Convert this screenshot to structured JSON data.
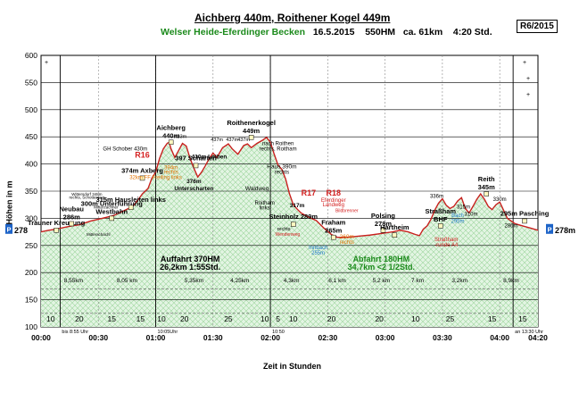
{
  "header": {
    "title": "Aichberg 440m, Roithener Kogel 449m",
    "region": "Welser Heide-Eferdinger Becken",
    "date": "16.5.2015",
    "ascent": "550HM",
    "distance": "ca. 61km",
    "duration": "4:20 Std.",
    "code": "R6/2015"
  },
  "chart_data": {
    "type": "area",
    "title": "Aichberg 440m, Roithener Kogel 449m",
    "xlabel": "Zeit in Stunden",
    "ylabel": "Höhen in m",
    "xlim": [
      0,
      260
    ],
    "ylim": [
      100,
      600
    ],
    "grid": true,
    "x_ticks": [
      {
        "t": 0,
        "label": "00:00"
      },
      {
        "t": 30,
        "label": "00:30"
      },
      {
        "t": 60,
        "label": "01:00"
      },
      {
        "t": 90,
        "label": "01:30"
      },
      {
        "t": 120,
        "label": "02:00"
      },
      {
        "t": 150,
        "label": "02:30"
      },
      {
        "t": 180,
        "label": "03:00"
      },
      {
        "t": 210,
        "label": "03:30"
      },
      {
        "t": 240,
        "label": "04:00"
      },
      {
        "t": 260,
        "label": "04:20"
      }
    ],
    "y_ticks": [
      100,
      150,
      200,
      250,
      300,
      350,
      400,
      450,
      500,
      550,
      600
    ],
    "profile": [
      [
        0,
        275
      ],
      [
        4,
        278
      ],
      [
        8,
        280
      ],
      [
        12,
        283
      ],
      [
        16,
        286
      ],
      [
        20,
        288
      ],
      [
        26,
        295
      ],
      [
        32,
        300
      ],
      [
        38,
        305
      ],
      [
        44,
        315
      ],
      [
        48,
        322
      ],
      [
        51,
        335
      ],
      [
        53,
        345
      ],
      [
        56,
        355
      ],
      [
        58,
        374
      ],
      [
        60,
        385
      ],
      [
        62,
        410
      ],
      [
        64,
        428
      ],
      [
        66,
        438
      ],
      [
        67,
        440
      ],
      [
        68,
        428
      ],
      [
        70,
        412
      ],
      [
        72,
        425
      ],
      [
        74,
        438
      ],
      [
        76,
        433
      ],
      [
        78,
        410
      ],
      [
        80,
        392
      ],
      [
        82,
        376
      ],
      [
        84,
        385
      ],
      [
        86,
        397
      ],
      [
        88,
        410
      ],
      [
        90,
        420
      ],
      [
        92,
        412
      ],
      [
        95,
        430
      ],
      [
        98,
        437
      ],
      [
        100,
        428
      ],
      [
        103,
        418
      ],
      [
        106,
        434
      ],
      [
        108,
        437
      ],
      [
        110,
        430
      ],
      [
        113,
        438
      ],
      [
        116,
        444
      ],
      [
        118,
        449
      ],
      [
        120,
        440
      ],
      [
        122,
        418
      ],
      [
        124,
        398
      ],
      [
        126,
        390
      ],
      [
        128,
        372
      ],
      [
        130,
        345
      ],
      [
        132,
        325
      ],
      [
        134,
        317
      ],
      [
        136,
        310
      ],
      [
        140,
        302
      ],
      [
        144,
        296
      ],
      [
        146,
        289
      ],
      [
        148,
        282
      ],
      [
        150,
        276
      ],
      [
        152,
        270
      ],
      [
        155,
        265
      ],
      [
        160,
        265
      ],
      [
        166,
        267
      ],
      [
        172,
        269
      ],
      [
        178,
        272
      ],
      [
        184,
        275
      ],
      [
        188,
        278
      ],
      [
        192,
        275
      ],
      [
        196,
        270
      ],
      [
        198,
        268
      ],
      [
        200,
        280
      ],
      [
        202,
        286
      ],
      [
        204,
        298
      ],
      [
        206,
        315
      ],
      [
        208,
        328
      ],
      [
        210,
        336
      ],
      [
        212,
        324
      ],
      [
        214,
        318
      ],
      [
        216,
        322
      ],
      [
        218,
        332
      ],
      [
        220,
        338
      ],
      [
        222,
        318
      ],
      [
        224,
        310
      ],
      [
        226,
        322
      ],
      [
        228,
        335
      ],
      [
        230,
        345
      ],
      [
        232,
        335
      ],
      [
        234,
        322
      ],
      [
        236,
        316
      ],
      [
        238,
        325
      ],
      [
        240,
        330
      ],
      [
        242,
        315
      ],
      [
        244,
        300
      ],
      [
        246,
        295
      ],
      [
        248,
        290
      ],
      [
        252,
        286
      ],
      [
        256,
        282
      ],
      [
        260,
        278
      ]
    ],
    "vlines": [
      {
        "t": 10,
        "label": "bis 8:55 Uhr"
      },
      {
        "t": 60,
        "label": "10:05Uhr"
      },
      {
        "t": 120,
        "label": "10:50"
      },
      {
        "t": 247,
        "label": "an 13:30 Uhr"
      }
    ],
    "segments": [
      {
        "t": 5,
        "label": "10"
      },
      {
        "t": 20,
        "label": "20"
      },
      {
        "t": 37,
        "label": "15"
      },
      {
        "t": 52,
        "label": "15"
      },
      {
        "t": 63,
        "label": "10"
      },
      {
        "t": 75,
        "label": "20"
      },
      {
        "t": 98,
        "label": "25"
      },
      {
        "t": 117,
        "label": "10"
      },
      {
        "t": 124,
        "label": "5"
      },
      {
        "t": 132,
        "label": "10"
      },
      {
        "t": 152,
        "label": "20"
      },
      {
        "t": 177,
        "label": "20"
      },
      {
        "t": 196,
        "label": "10"
      },
      {
        "t": 214,
        "label": "25"
      },
      {
        "t": 236,
        "label": "15"
      },
      {
        "t": 252,
        "label": "15"
      }
    ],
    "distances": [
      {
        "t": 17,
        "label": "8,55km"
      },
      {
        "t": 45,
        "label": "8,05 km"
      },
      {
        "t": 80,
        "label": "5,35km"
      },
      {
        "t": 104,
        "label": "4,25km"
      },
      {
        "t": 131,
        "label": "4,3km"
      },
      {
        "t": 155,
        "label": "6,1 km"
      },
      {
        "t": 178,
        "label": "5,2 km"
      },
      {
        "t": 197,
        "label": "7 km"
      },
      {
        "t": 219,
        "label": "3,2km"
      },
      {
        "t": 246,
        "label": "8,9km"
      }
    ],
    "totals": [
      {
        "t": 78,
        "elev": 220,
        "text": "Auffahrt 370HM"
      },
      {
        "t": 78,
        "elev": 205,
        "text": "26,2km   1:55Std."
      },
      {
        "t": 178,
        "elev": 220,
        "text": "Abfahrt 180HM"
      },
      {
        "t": 178,
        "elev": 205,
        "text": "34,7km   <2 1/2Std."
      }
    ],
    "peaks": [
      {
        "t": 8,
        "elev": 278,
        "title": "Trauner Kreuzung",
        "sub": ""
      },
      {
        "t": 16,
        "elev": 290,
        "title": "Neubau",
        "sub": "286m"
      },
      {
        "t": 37,
        "elev": 300,
        "title": "300m Unterführung",
        "sub": "Westbahn"
      },
      {
        "t": 47,
        "elev": 320,
        "title": "315m Hausleiten links",
        "sub": ""
      },
      {
        "t": 53,
        "elev": 374,
        "title": "374m Axberg",
        "sub": ""
      },
      {
        "t": 68,
        "elev": 440,
        "title": "Aichberg",
        "sub": "440m"
      },
      {
        "t": 81,
        "elev": 397,
        "title": "397 Scharten",
        "sub": ""
      },
      {
        "t": 110,
        "elev": 449,
        "title": "Roithenerkogel",
        "sub": "449m"
      },
      {
        "t": 132,
        "elev": 289,
        "title": "Steinholz 289m",
        "sub": ""
      },
      {
        "t": 153,
        "elev": 265,
        "title": "Fraham",
        "sub": "265m"
      },
      {
        "t": 179,
        "elev": 278,
        "title": "Polsing",
        "sub": "278m"
      },
      {
        "t": 185,
        "elev": 269,
        "title": "Hartheim",
        "sub": ""
      },
      {
        "t": 209,
        "elev": 286,
        "title": "Straßham",
        "sub": "BHF"
      },
      {
        "t": 233,
        "elev": 345,
        "title": "Reith",
        "sub": "345m"
      },
      {
        "t": 253,
        "elev": 295,
        "title": "295m Pasching",
        "sub": ""
      }
    ],
    "notes": [
      {
        "t": 53,
        "elev": 412,
        "text": "R16",
        "color": "#d42020",
        "size": 9,
        "weight": "bold"
      },
      {
        "t": 140,
        "elev": 342,
        "text": "R17",
        "color": "#d42020",
        "size": 9,
        "weight": "bold"
      },
      {
        "t": 153,
        "elev": 342,
        "text": "R18",
        "color": "#d42020",
        "size": 9,
        "weight": "bold"
      },
      {
        "t": 153,
        "elev": 330,
        "text": "Eferdinger",
        "color": "#d42020",
        "size": 6,
        "weight": "normal"
      },
      {
        "t": 153,
        "elev": 322,
        "text": "Landweg",
        "color": "#d42020",
        "size": 6,
        "weight": "normal"
      },
      {
        "t": 44,
        "elev": 425,
        "text": "GH Schober 430m",
        "color": "#000",
        "size": 6,
        "weight": "normal"
      },
      {
        "t": 60,
        "elev": 372,
        "text": "32km FF Freiling links",
        "color": "#e07000",
        "size": 6,
        "weight": "normal"
      },
      {
        "t": 68,
        "elev": 390,
        "text": "394m",
        "color": "#e07000",
        "size": 6,
        "weight": "normal"
      },
      {
        "t": 68,
        "elev": 382,
        "text": "rechts",
        "color": "#e07000",
        "size": 6,
        "weight": "normal"
      },
      {
        "t": 80,
        "elev": 365,
        "text": "376m",
        "color": "#000",
        "size": 6.5,
        "weight": "bold"
      },
      {
        "t": 80,
        "elev": 352,
        "text": "Unterscharten",
        "color": "#000",
        "size": 6.5,
        "weight": "bold"
      },
      {
        "t": 88,
        "elev": 410,
        "text": "410m Loiben",
        "color": "#000",
        "size": 6.5,
        "weight": "bold"
      },
      {
        "t": 73,
        "elev": 448,
        "text": "433m",
        "color": "#000",
        "size": 5.5,
        "weight": "normal"
      },
      {
        "t": 92,
        "elev": 442,
        "text": "437m",
        "color": "#000",
        "size": 5.5,
        "weight": "normal"
      },
      {
        "t": 100,
        "elev": 442,
        "text": "437m",
        "color": "#000",
        "size": 5.5,
        "weight": "normal"
      },
      {
        "t": 106,
        "elev": 442,
        "text": "437m",
        "color": "#000",
        "size": 5.5,
        "weight": "normal"
      },
      {
        "t": 124,
        "elev": 435,
        "text": "nach Roithen",
        "color": "#000",
        "size": 6,
        "weight": "normal"
      },
      {
        "t": 124,
        "elev": 425,
        "text": "rechts, Roitham",
        "color": "#000",
        "size": 6,
        "weight": "normal"
      },
      {
        "t": 126,
        "elev": 392,
        "text": "Haus 390m",
        "color": "#000",
        "size": 6.5,
        "weight": "normal"
      },
      {
        "t": 126,
        "elev": 382,
        "text": "rechts",
        "color": "#000",
        "size": 6,
        "weight": "normal"
      },
      {
        "t": 113,
        "elev": 352,
        "text": "Waldweg",
        "color": "#000",
        "size": 6.5,
        "weight": "normal"
      },
      {
        "t": 117,
        "elev": 325,
        "text": "Roitham",
        "color": "#000",
        "size": 6,
        "weight": "normal"
      },
      {
        "t": 117,
        "elev": 316,
        "text": "links",
        "color": "#000",
        "size": 6,
        "weight": "normal"
      },
      {
        "t": 134,
        "elev": 320,
        "text": "317m",
        "color": "#000",
        "size": 6.5,
        "weight": "bold"
      },
      {
        "t": 127,
        "elev": 278,
        "text": "rechts",
        "color": "#000",
        "size": 5.5,
        "weight": "normal"
      },
      {
        "t": 129,
        "elev": 268,
        "text": "Wendenweg",
        "color": "#d42020",
        "size": 5,
        "weight": "normal"
      },
      {
        "t": 145,
        "elev": 243,
        "text": "Innbach",
        "color": "#1e78c8",
        "size": 6,
        "weight": "normal"
      },
      {
        "t": 145,
        "elev": 233,
        "text": "255m",
        "color": "#1e78c8",
        "size": 6,
        "weight": "normal"
      },
      {
        "t": 160,
        "elev": 263,
        "text": "260m",
        "color": "#e07000",
        "size": 6.5,
        "weight": "normal"
      },
      {
        "t": 160,
        "elev": 253,
        "text": "rechts",
        "color": "#e07000",
        "size": 6,
        "weight": "normal"
      },
      {
        "t": 160,
        "elev": 311,
        "text": "Bildbrenner",
        "color": "#d42020",
        "size": 5,
        "weight": "normal"
      },
      {
        "t": 207,
        "elev": 338,
        "text": "336m",
        "color": "#000",
        "size": 6,
        "weight": "normal"
      },
      {
        "t": 218,
        "elev": 302,
        "text": "Bach",
        "color": "#1e78c8",
        "size": 6,
        "weight": "normal"
      },
      {
        "t": 218,
        "elev": 292,
        "text": "295m",
        "color": "#1e78c8",
        "size": 6,
        "weight": "normal"
      },
      {
        "t": 221,
        "elev": 318,
        "text": "315m",
        "color": "#000",
        "size": 6,
        "weight": "normal"
      },
      {
        "t": 225,
        "elev": 305,
        "text": "310m",
        "color": "#000",
        "size": 6,
        "weight": "normal"
      },
      {
        "t": 240,
        "elev": 332,
        "text": "330m",
        "color": "#000",
        "size": 6,
        "weight": "normal"
      },
      {
        "t": 246,
        "elev": 283,
        "text": "286m",
        "color": "#000",
        "size": 6,
        "weight": "normal"
      },
      {
        "t": 212,
        "elev": 258,
        "text": "Straßham",
        "color": "#d42020",
        "size": 6,
        "weight": "normal"
      },
      {
        "t": 212,
        "elev": 248,
        "text": "-runde A4",
        "color": "#d42020",
        "size": 6,
        "weight": "normal"
      },
      {
        "t": 24,
        "elev": 342,
        "text": "Wittersdorf 348m",
        "color": "#000",
        "size": 4.5,
        "weight": "normal"
      },
      {
        "t": 24,
        "elev": 336,
        "text": "rechts, Schotterweg",
        "color": "#000",
        "size": 4.5,
        "weight": "normal"
      },
      {
        "t": 34,
        "elev": 318,
        "text": "Mitterzachner",
        "color": "#000",
        "size": 4.5,
        "weight": "normal"
      },
      {
        "t": 30,
        "elev": 268,
        "text": "Mitterschachl",
        "color": "#000",
        "size": 4.5,
        "weight": "normal"
      }
    ],
    "endpoints": [
      {
        "side": "left",
        "label": "P",
        "value": "278"
      },
      {
        "side": "right",
        "label": "P",
        "value": "278m"
      }
    ]
  }
}
